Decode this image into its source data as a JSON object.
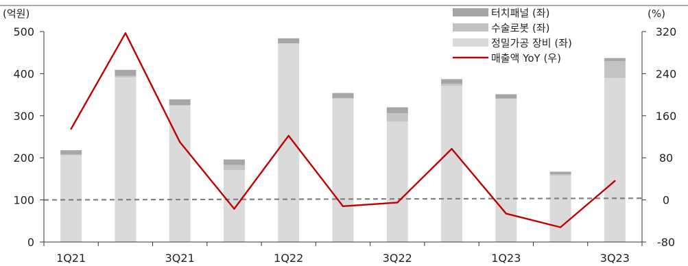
{
  "chart_data": {
    "type": "bar",
    "stacked": true,
    "categories": [
      "1Q21",
      "2Q21",
      "3Q21",
      "4Q21",
      "1Q22",
      "2Q22",
      "3Q22",
      "4Q22",
      "1Q23",
      "2Q23",
      "3Q23"
    ],
    "x_tick_labels": [
      "1Q21",
      "3Q21",
      "1Q22",
      "3Q22",
      "1Q23",
      "3Q23"
    ],
    "left_axis": {
      "unit": "(억원)",
      "ylim": [
        0,
        500
      ],
      "ticks": [
        "0",
        "100",
        "200",
        "300",
        "400",
        "500"
      ]
    },
    "right_axis": {
      "unit": "(%)",
      "ylim": [
        -80,
        320
      ],
      "ticks": [
        "-80",
        "0",
        "80",
        "160",
        "240",
        "320"
      ]
    },
    "series": [
      {
        "name": "터치패널 (좌)",
        "type": "bar",
        "axis": "left",
        "color": "#a6a6a6",
        "values": [
          10,
          14,
          14,
          13,
          12,
          12,
          14,
          11,
          10,
          6,
          7
        ]
      },
      {
        "name": "수술로봇 (좌)",
        "type": "bar",
        "axis": "left",
        "color": "#c3c3c3",
        "values": [
          2,
          4,
          0,
          12,
          0,
          1,
          20,
          5,
          1,
          3,
          40
        ]
      },
      {
        "name": "정밀가공 장비 (좌)",
        "type": "bar",
        "axis": "left",
        "color": "#dadada",
        "values": [
          206,
          391,
          325,
          171,
          472,
          341,
          286,
          371,
          340,
          158,
          390
        ]
      },
      {
        "name": "매출액 YoY (우)",
        "type": "line",
        "axis": "right",
        "color": "#c00000",
        "values": [
          135,
          317,
          110,
          -17,
          122,
          -12,
          -5,
          97,
          -26,
          -52,
          36
        ]
      }
    ],
    "reference_line": {
      "axis": "left",
      "values": [
        100,
        104
      ],
      "style": "dashed",
      "color": "#808080"
    },
    "legend": {
      "position": "top-right"
    },
    "grid": false
  }
}
